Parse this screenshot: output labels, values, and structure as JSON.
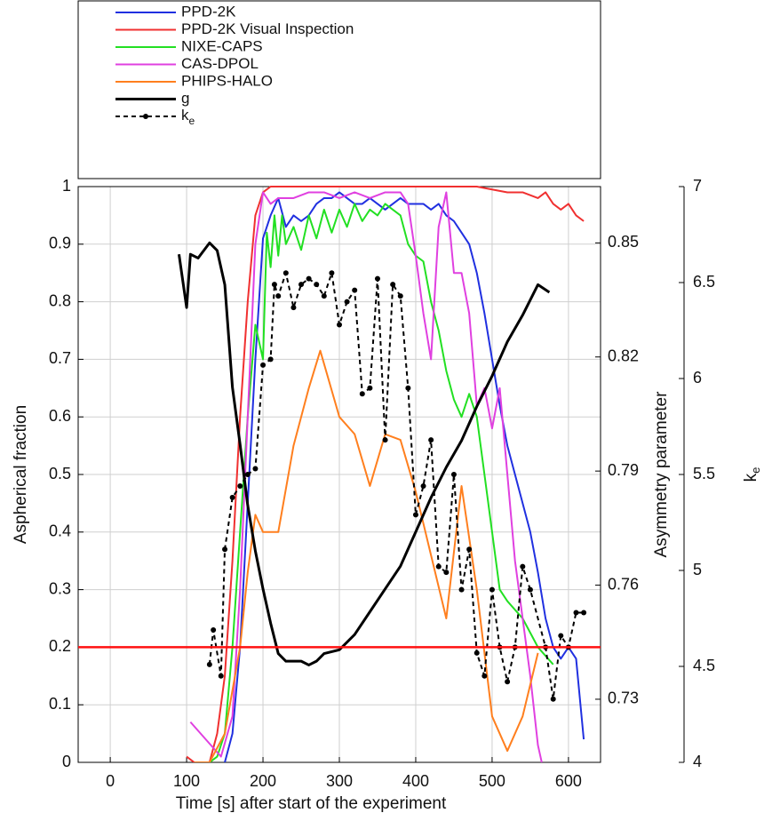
{
  "chart_data": {
    "type": "line",
    "xlabel": "Time [s] after start of the experiment",
    "ylabel": "Aspherical fraction",
    "y2label": "Asymmetry parameter",
    "y3label": {
      "base": "k",
      "sub": "e"
    },
    "xlim": [
      -42,
      642
    ],
    "xticks": [
      0,
      100,
      200,
      300,
      400,
      500,
      600
    ],
    "ylim": [
      0,
      1
    ],
    "yticks": [
      0,
      0.1,
      0.2,
      0.3,
      0.4,
      0.5,
      0.6,
      0.7,
      0.8,
      0.9,
      1
    ],
    "y2lim": [
      0.7134,
      0.8648
    ],
    "y2ticks": [
      0.73,
      0.76,
      0.79,
      0.82,
      0.85
    ],
    "y3lim": [
      4,
      7
    ],
    "y3ticks": [
      4,
      4.5,
      5,
      5.5,
      6,
      6.5,
      7
    ],
    "grid": true,
    "hlines": [
      {
        "value": 0.2,
        "color": "#ff1010"
      }
    ],
    "series": [
      {
        "name": "PPD-2K",
        "color": "#2030e0",
        "axis": "y",
        "x": [
          150,
          160,
          170,
          180,
          190,
          200,
          210,
          220,
          230,
          240,
          250,
          260,
          270,
          280,
          290,
          300,
          310,
          320,
          330,
          340,
          350,
          360,
          370,
          380,
          390,
          400,
          410,
          420,
          430,
          440,
          450,
          460,
          470,
          480,
          490,
          500,
          510,
          520,
          530,
          540,
          550,
          560,
          570,
          580,
          590,
          600,
          610,
          620
        ],
        "values": [
          0.0,
          0.05,
          0.2,
          0.45,
          0.7,
          0.91,
          0.95,
          0.98,
          0.93,
          0.95,
          0.94,
          0.95,
          0.97,
          0.98,
          0.98,
          0.99,
          0.98,
          0.97,
          0.97,
          0.98,
          0.97,
          0.96,
          0.97,
          0.98,
          0.97,
          0.97,
          0.97,
          0.96,
          0.97,
          0.95,
          0.94,
          0.92,
          0.9,
          0.85,
          0.78,
          0.7,
          0.62,
          0.55,
          0.5,
          0.45,
          0.4,
          0.33,
          0.25,
          0.2,
          0.18,
          0.2,
          0.18,
          0.04
        ]
      },
      {
        "name": "PPD-2K Visual Inspection",
        "color": "#f03030",
        "axis": "y",
        "x": [
          100,
          110,
          120,
          130,
          140,
          150,
          160,
          170,
          180,
          190,
          200,
          210,
          220,
          300,
          400,
          480,
          500,
          520,
          540,
          560,
          570,
          580,
          590,
          600,
          610,
          620
        ],
        "values": [
          0.01,
          0,
          0,
          0,
          0.05,
          0.15,
          0.35,
          0.6,
          0.8,
          0.95,
          0.99,
          1,
          1,
          1,
          1,
          1,
          0.995,
          0.99,
          0.99,
          0.98,
          0.99,
          0.97,
          0.96,
          0.97,
          0.95,
          0.94
        ]
      },
      {
        "name": "NIXE-CAPS",
        "color": "#22e022",
        "axis": "y",
        "x": [
          130,
          140,
          150,
          160,
          170,
          180,
          190,
          200,
          205,
          210,
          215,
          220,
          225,
          230,
          240,
          250,
          260,
          270,
          280,
          290,
          300,
          310,
          320,
          330,
          340,
          350,
          360,
          370,
          380,
          390,
          400,
          410,
          420,
          430,
          440,
          450,
          460,
          470,
          480,
          490,
          500,
          510,
          520,
          540,
          560,
          580
        ],
        "values": [
          0,
          0.01,
          0.05,
          0.2,
          0.4,
          0.6,
          0.76,
          0.7,
          0.92,
          0.86,
          0.95,
          0.88,
          0.95,
          0.9,
          0.93,
          0.89,
          0.95,
          0.91,
          0.96,
          0.92,
          0.96,
          0.93,
          0.97,
          0.94,
          0.96,
          0.95,
          0.97,
          0.96,
          0.95,
          0.9,
          0.88,
          0.87,
          0.8,
          0.75,
          0.68,
          0.63,
          0.6,
          0.64,
          0.6,
          0.5,
          0.4,
          0.3,
          0.28,
          0.25,
          0.2,
          0.17
        ]
      },
      {
        "name": "CAS-DPOL",
        "color": "#e040e0",
        "axis": "y",
        "x": [
          105,
          145,
          160,
          170,
          180,
          190,
          200,
          210,
          220,
          240,
          260,
          280,
          300,
          320,
          340,
          360,
          380,
          390,
          400,
          410,
          420,
          430,
          440,
          450,
          460,
          470,
          480,
          490,
          500,
          510,
          520,
          530,
          540,
          550,
          560,
          565
        ],
        "values": [
          0.07,
          0.01,
          0.08,
          0.3,
          0.6,
          0.9,
          0.99,
          0.97,
          0.98,
          0.98,
          0.99,
          0.99,
          0.98,
          0.99,
          0.98,
          0.99,
          0.99,
          0.97,
          0.88,
          0.78,
          0.7,
          0.93,
          0.99,
          0.85,
          0.85,
          0.78,
          0.62,
          0.65,
          0.58,
          0.65,
          0.5,
          0.35,
          0.25,
          0.15,
          0.03,
          0
        ]
      },
      {
        "name": "PHIPS-HALO",
        "color": "#ff7f1e",
        "axis": "y",
        "x": [
          110,
          130,
          150,
          170,
          180,
          190,
          200,
          220,
          240,
          260,
          275,
          300,
          320,
          340,
          360,
          380,
          400,
          420,
          440,
          460,
          480,
          500,
          520,
          540,
          560
        ],
        "values": [
          0,
          0,
          0.05,
          0.2,
          0.33,
          0.43,
          0.4,
          0.4,
          0.55,
          0.65,
          0.715,
          0.6,
          0.57,
          0.48,
          0.57,
          0.56,
          0.47,
          0.36,
          0.25,
          0.48,
          0.3,
          0.08,
          0.02,
          0.08,
          0.19
        ]
      },
      {
        "name": "g",
        "color": "#000000",
        "axis": "y2",
        "width": 3,
        "x": [
          90,
          100,
          105,
          115,
          130,
          140,
          150,
          160,
          170,
          180,
          190,
          200,
          210,
          220,
          230,
          240,
          250,
          260,
          270,
          280,
          300,
          320,
          340,
          360,
          380,
          400,
          420,
          440,
          460,
          480,
          500,
          520,
          540,
          550,
          560,
          575
        ],
        "values": [
          0.847,
          0.833,
          0.847,
          0.846,
          0.85,
          0.848,
          0.839,
          0.812,
          0.797,
          0.781,
          0.769,
          0.759,
          0.75,
          0.742,
          0.74,
          0.74,
          0.74,
          0.739,
          0.74,
          0.742,
          0.743,
          0.747,
          0.753,
          0.759,
          0.765,
          0.774,
          0.783,
          0.791,
          0.798,
          0.807,
          0.815,
          0.824,
          0.831,
          0.835,
          0.839,
          0.837
        ]
      },
      {
        "name": {
          "base": "k",
          "sub": "e"
        },
        "color": "#000000",
        "axis": "y3",
        "dashed": true,
        "marker": true,
        "x": [
          130,
          135,
          145,
          150,
          160,
          170,
          180,
          190,
          200,
          210,
          215,
          220,
          230,
          240,
          250,
          260,
          270,
          280,
          290,
          300,
          310,
          320,
          330,
          340,
          350,
          360,
          370,
          380,
          390,
          400,
          410,
          420,
          430,
          440,
          450,
          460,
          470,
          480,
          490,
          500,
          510,
          520,
          530,
          540,
          550,
          570,
          580,
          590,
          600,
          610,
          620
        ],
        "values": [
          4.51,
          4.69,
          4.45,
          5.11,
          5.38,
          5.44,
          5.5,
          5.53,
          6.07,
          6.1,
          6.49,
          6.43,
          6.55,
          6.37,
          6.49,
          6.52,
          6.49,
          6.43,
          6.55,
          6.28,
          6.4,
          6.46,
          5.92,
          5.95,
          6.52,
          5.68,
          6.49,
          6.43,
          5.95,
          5.29,
          5.44,
          5.68,
          5.02,
          4.99,
          5.5,
          4.9,
          5.11,
          4.57,
          4.45,
          4.9,
          4.6,
          4.42,
          4.6,
          5.02,
          4.9,
          4.6,
          4.33,
          4.66,
          4.6,
          4.78,
          4.78
        ]
      }
    ]
  }
}
